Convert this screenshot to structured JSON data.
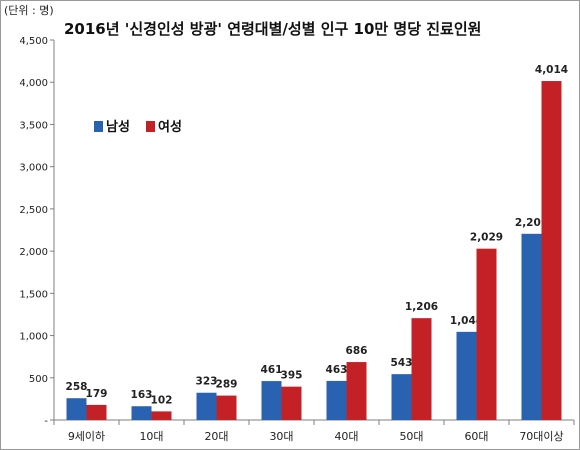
{
  "unit_label": "(단위 : 명)",
  "chart_data": {
    "type": "bar",
    "title": "2016년 '신경인성 방광' 연령대별/성별 인구 10만 명당 진료인원",
    "xlabel": "",
    "ylabel": "",
    "categories": [
      "9세이하",
      "10대",
      "20대",
      "30대",
      "40대",
      "50대",
      "60대",
      "70대이상"
    ],
    "series": [
      {
        "name": "남성",
        "color": "#2a62b2",
        "values": [
          258,
          163,
          323,
          461,
          463,
          543,
          1044,
          2205
        ]
      },
      {
        "name": "여성",
        "color": "#c42127",
        "values": [
          179,
          102,
          289,
          395,
          686,
          1206,
          2029,
          4014
        ]
      }
    ],
    "ylim": [
      0,
      4500
    ],
    "yticks": [
      0,
      500,
      1000,
      1500,
      2000,
      2500,
      3000,
      3500,
      4000,
      4500
    ],
    "ytick_labels": [
      "-",
      "500",
      "1,000",
      "1,500",
      "2,000",
      "2,500",
      "3,000",
      "3,500",
      "4,000",
      "4,500"
    ],
    "data_labels": [
      [
        "258",
        "163",
        "323",
        "461",
        "463",
        "543",
        "1,044",
        "2,205"
      ],
      [
        "179",
        "102",
        "289",
        "395",
        "686",
        "1,206",
        "2,029",
        "4,014"
      ]
    ],
    "grid": false,
    "legend_position": "upper-left"
  }
}
